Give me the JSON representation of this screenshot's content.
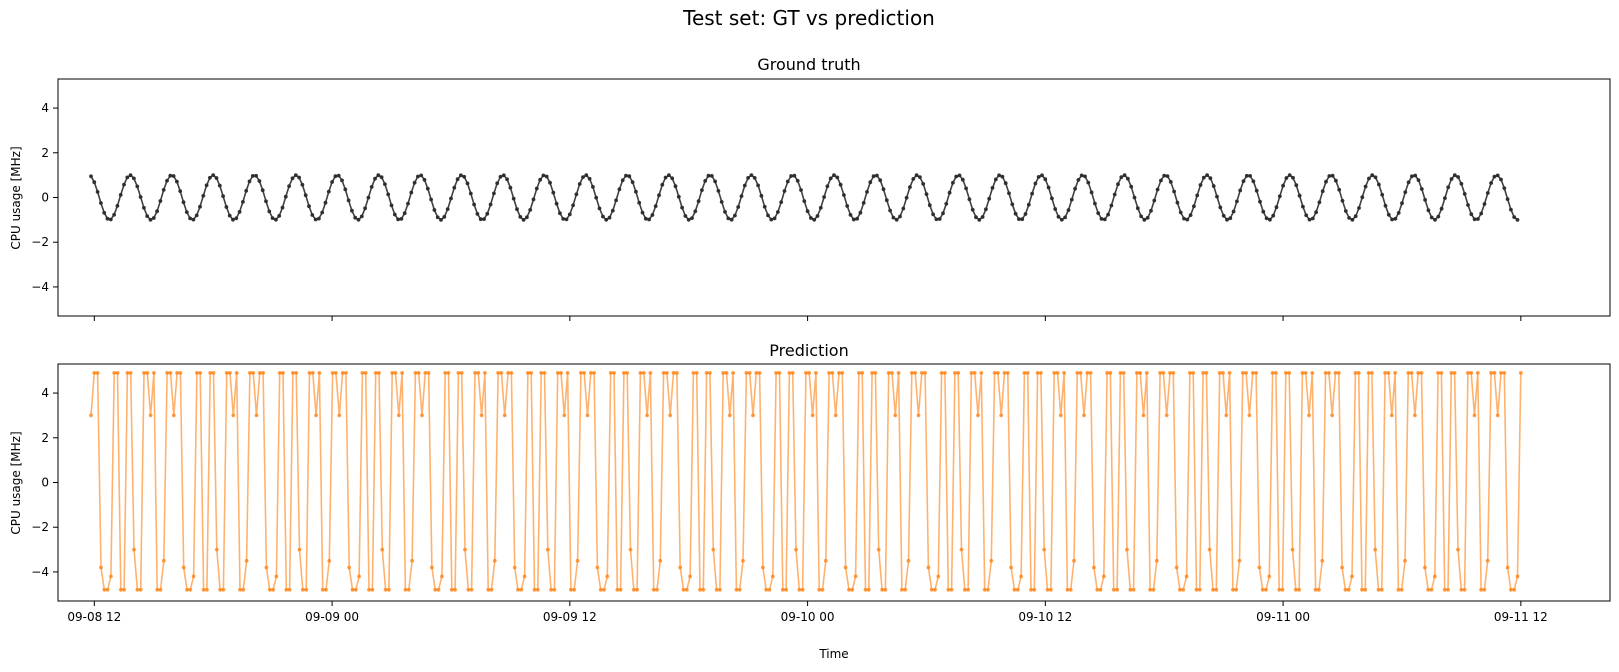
{
  "figure": {
    "suptitle": "Test set: GT vs prediction"
  },
  "colors": {
    "ground_truth": "#2b2b2b",
    "prediction": "#ff7f0e"
  },
  "chart_data": [
    {
      "type": "line",
      "title": "Ground truth",
      "xlabel": "",
      "ylabel": "CPU usage [MHz]",
      "ylim": [
        -5.3,
        5.3
      ],
      "yticks": [
        -4,
        -2,
        0,
        2,
        4
      ],
      "xlim": [
        "2024-09-08 10:10",
        "2024-09-11 16:30"
      ],
      "xticks": [
        "09-08 12",
        "09-09 00",
        "09-09 12",
        "09-10 00",
        "09-10 12",
        "09-11 00",
        "09-11 12"
      ],
      "show_xtick_labels": false,
      "grid": false,
      "marker": "dot",
      "series": [
        {
          "t_start": "2024-09-08 11:50",
          "t_end": "2024-09-11 11:50",
          "n_points": 433,
          "pattern": "sinusoid",
          "amplitude": 1.0,
          "offset": 0,
          "period_hours": 2.09,
          "start_value": 0.95
        }
      ]
    },
    {
      "type": "line",
      "title": "Prediction",
      "xlabel": "Time",
      "ylabel": "CPU usage [MHz]",
      "ylim": [
        -5.3,
        5.3
      ],
      "yticks": [
        -4,
        -2,
        0,
        2,
        4
      ],
      "xlim": [
        "2024-09-08 10:10",
        "2024-09-11 16:30"
      ],
      "xticks": [
        "09-08 12",
        "09-09 00",
        "09-09 12",
        "09-10 00",
        "09-10 12",
        "09-11 00",
        "09-11 12"
      ],
      "show_xtick_labels": true,
      "grid": false,
      "marker": "dot",
      "series": [
        {
          "t_start": "2024-09-08 11:50",
          "t_end": "2024-09-11 12:00",
          "n_points": 433,
          "pattern": "oscillating",
          "max": 4.9,
          "min": -4.8,
          "values": [
            3.0,
            4.9,
            4.9,
            -3.8,
            -4.8,
            -4.8,
            -4.2,
            4.9,
            4.9,
            -4.8,
            -4.8,
            4.9,
            4.9,
            -3.0,
            -4.8,
            -4.8,
            4.9,
            4.9,
            3.0,
            4.9,
            -4.8,
            -4.8,
            -3.5,
            4.9,
            4.9
          ]
        }
      ]
    }
  ]
}
